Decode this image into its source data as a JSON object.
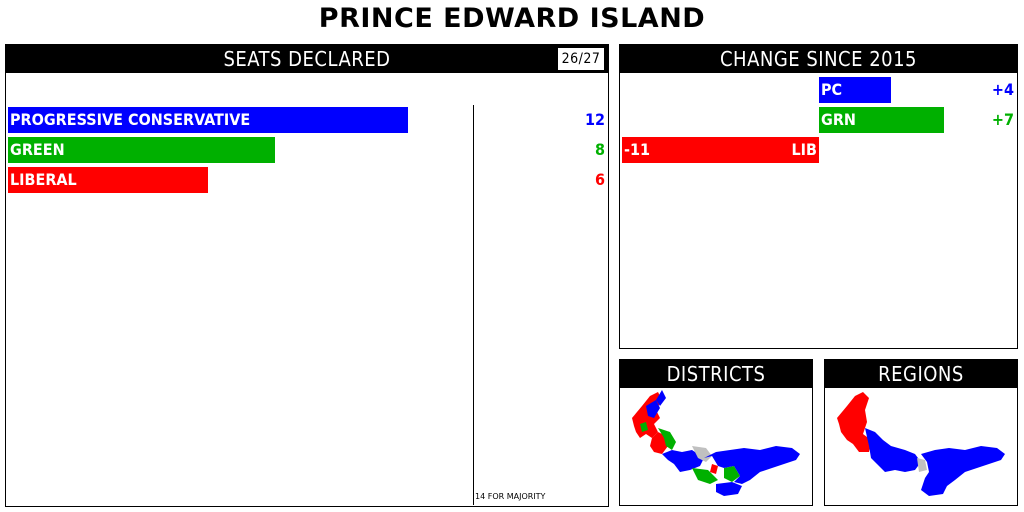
{
  "title": "PRINCE EDWARD ISLAND",
  "colors": {
    "pc": "#0000ff",
    "green": "#00b000",
    "liberal": "#ff0000",
    "undeclared": "#c0c0c0"
  },
  "seats_panel": {
    "header": "SEATS DECLARED",
    "counter": "26/27",
    "majority_note": "14 FOR MAJORITY"
  },
  "change_panel": {
    "header": "CHANGE SINCE 2015"
  },
  "districts_panel": {
    "header": "DISTRICTS"
  },
  "regions_panel": {
    "header": "REGIONS"
  },
  "chart_data": [
    {
      "type": "bar",
      "title": "SEATS DECLARED",
      "orientation": "horizontal",
      "categories": [
        "PROGRESSIVE CONSERVATIVE",
        "GREEN",
        "LIBERAL"
      ],
      "values": [
        12,
        8,
        6
      ],
      "value_labels": [
        "12",
        "8",
        "6"
      ],
      "colors": [
        "#0000ff",
        "#00b000",
        "#ff0000"
      ],
      "declared": 26,
      "total": 27,
      "majority": 14
    },
    {
      "type": "bar",
      "title": "CHANGE SINCE 2015",
      "orientation": "horizontal",
      "categories": [
        "PC",
        "GRN",
        "LIB"
      ],
      "values": [
        4,
        7,
        -11
      ],
      "value_labels": [
        "+4",
        "+7",
        "-11"
      ],
      "colors": [
        "#0000ff",
        "#00b000",
        "#ff0000"
      ]
    }
  ]
}
